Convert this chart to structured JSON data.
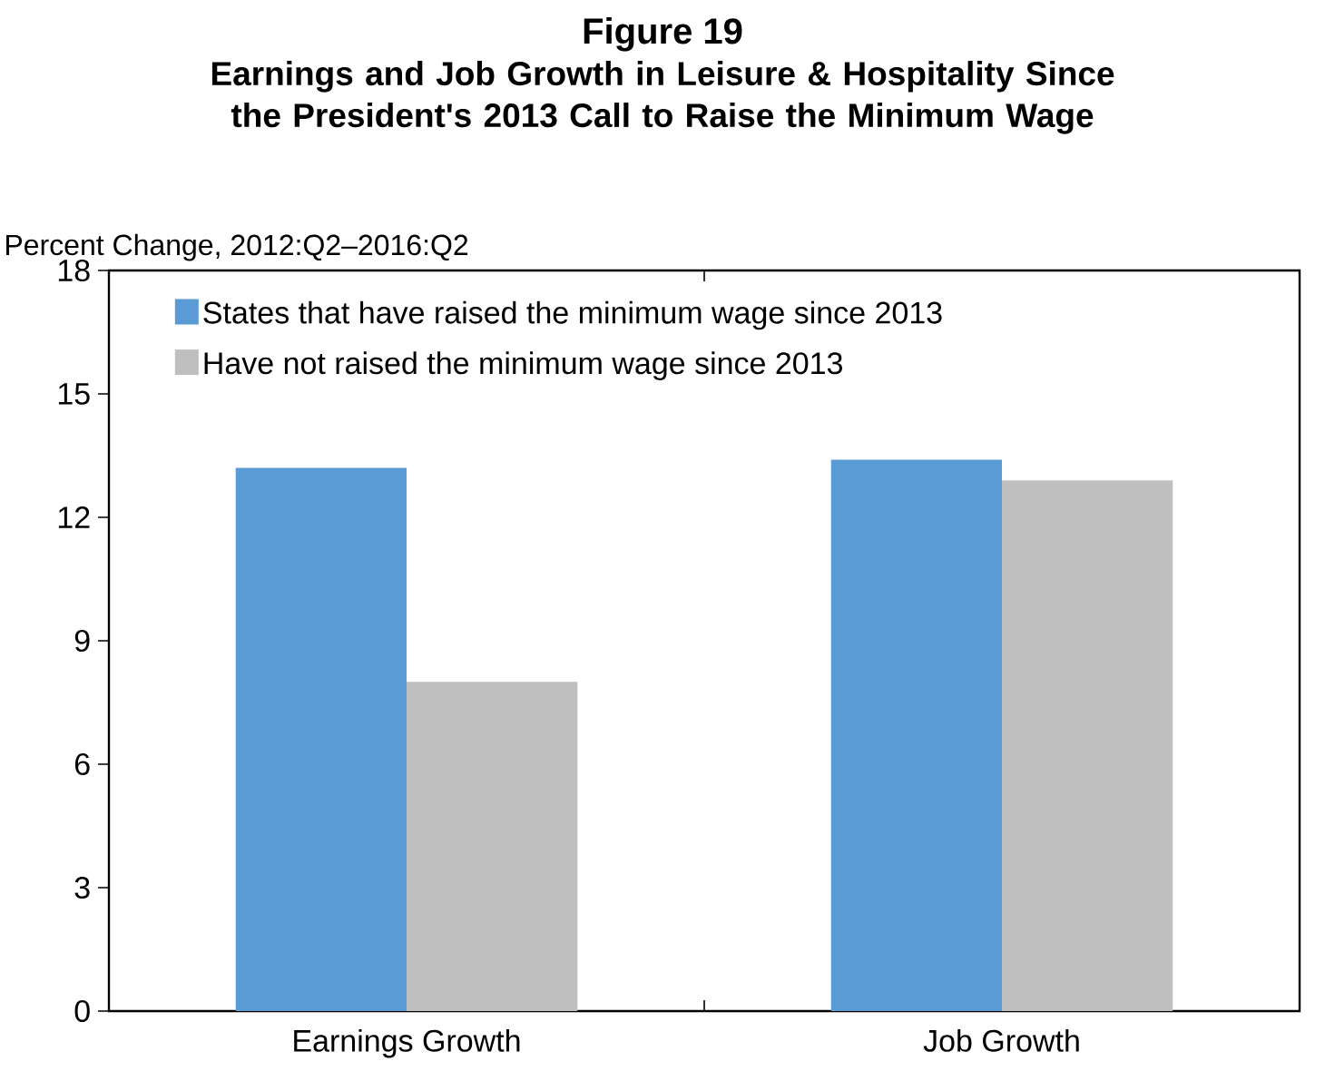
{
  "chart_data": {
    "type": "bar",
    "title": "Figure 19",
    "subtitle": "Earnings and Job Growth in Leisure & Hospitality Since the President's 2013 Call to Raise the Minimum Wage",
    "ylabel": "Percent Change, 2012:Q2–2016:Q2",
    "categories": [
      "Earnings Growth",
      "Job Growth"
    ],
    "series": [
      {
        "name": "States that have raised the minimum wage since 2013",
        "color": "#5b9bd5",
        "values": [
          13.2,
          13.4
        ]
      },
      {
        "name": "Have not raised the minimum wage since 2013",
        "color": "#bfbfbf",
        "values": [
          8.0,
          12.9
        ]
      }
    ],
    "ylim": [
      0,
      18
    ],
    "yticks": [
      0,
      3,
      6,
      9,
      12,
      15,
      18
    ],
    "legend": "top left",
    "grid": false
  }
}
